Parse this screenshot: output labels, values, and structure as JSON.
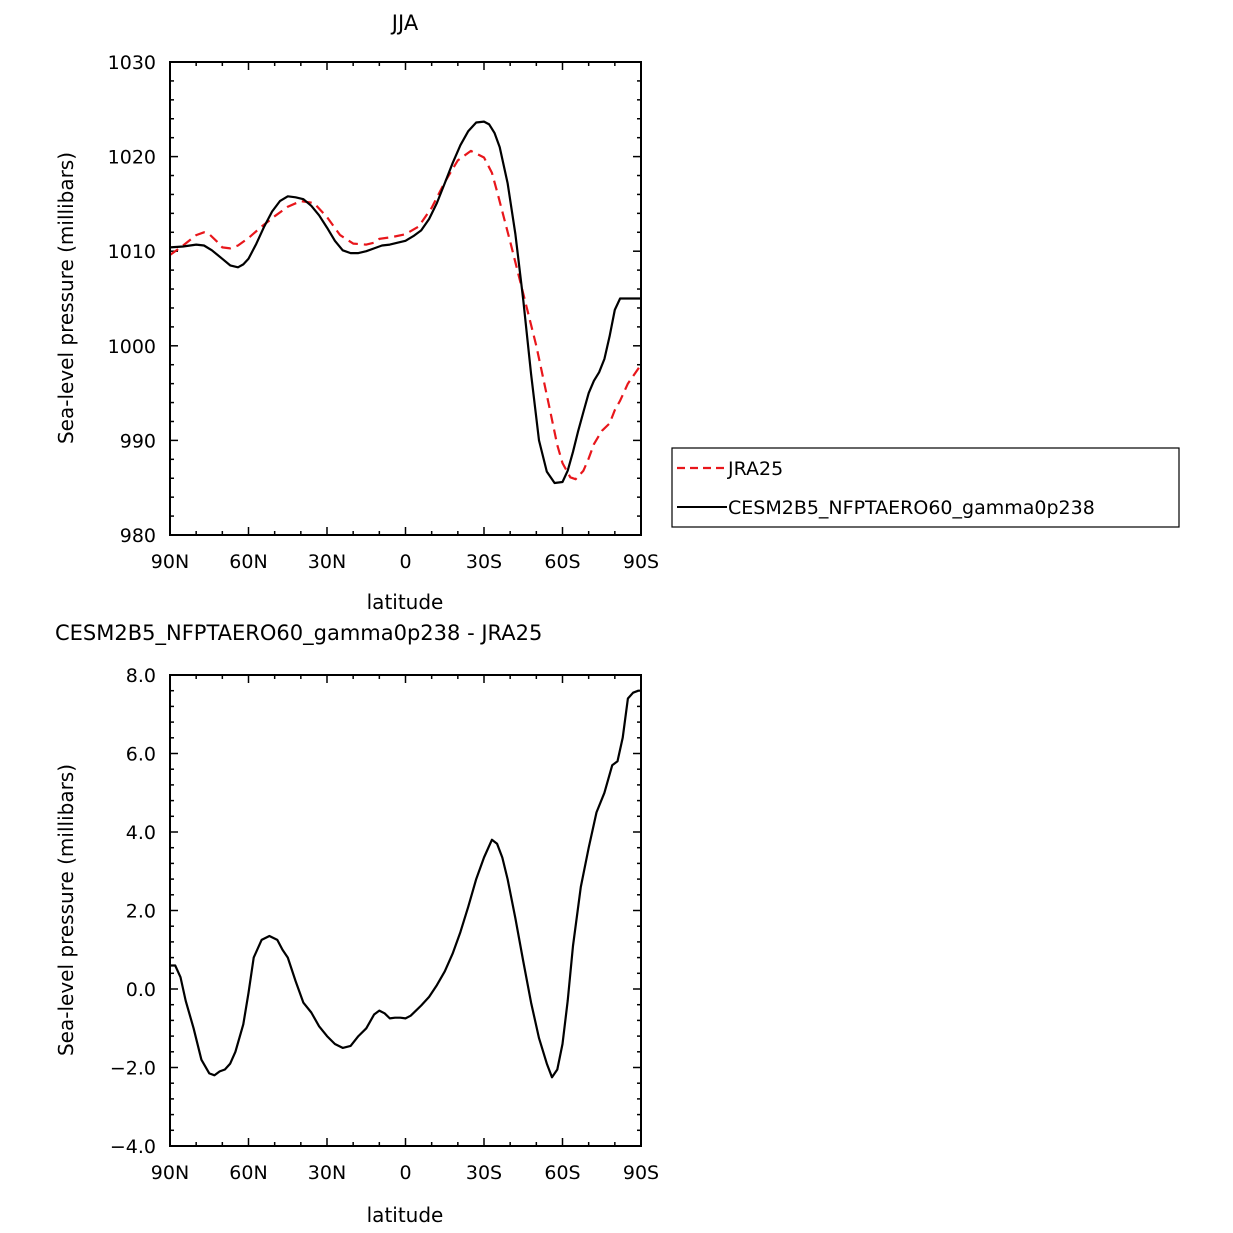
{
  "chart_data": [
    {
      "type": "line",
      "title": "JJA",
      "xlabel": "latitude",
      "ylabel": "Sea-level pressure (millibars)",
      "xlim": [
        -90,
        90
      ],
      "x_ticks": [
        -90,
        -60,
        -30,
        0,
        30,
        60,
        90
      ],
      "x_tick_labels": [
        "90N",
        "60N",
        "30N",
        "0",
        "30S",
        "60S",
        "90S"
      ],
      "ylim": [
        980,
        1030
      ],
      "y_ticks": [
        980,
        990,
        1000,
        1010,
        1020,
        1030
      ],
      "y_tick_labels": [
        "980",
        "990",
        "1000",
        "1010",
        "1020",
        "1030"
      ],
      "grid": false,
      "legend_position": "right",
      "series": [
        {
          "name": "JRA25",
          "color": "#e8161b",
          "dash": "dashed",
          "x": [
            -90,
            -85,
            -80,
            -77,
            -75,
            -72,
            -70,
            -67,
            -64,
            -60,
            -55,
            -50,
            -45,
            -40,
            -35,
            -30,
            -25,
            -20,
            -15,
            -12,
            -10,
            -5,
            0,
            5,
            10,
            15,
            20,
            25,
            30,
            33,
            35,
            40,
            45,
            50,
            55,
            58,
            60,
            63,
            65,
            68,
            70,
            72,
            75,
            78,
            80,
            82,
            85,
            88,
            90
          ],
          "y": [
            1009.6,
            1010.6,
            1011.7,
            1012.0,
            1011.8,
            1011.0,
            1010.4,
            1010.3,
            1010.6,
            1011.4,
            1012.6,
            1013.7,
            1014.7,
            1015.3,
            1015.1,
            1013.6,
            1011.7,
            1010.8,
            1010.7,
            1010.9,
            1011.3,
            1011.5,
            1011.8,
            1012.6,
            1014.6,
            1017.3,
            1019.6,
            1020.6,
            1019.9,
            1018.3,
            1016.3,
            1011.0,
            1005.5,
            1000.0,
            993.5,
            989.5,
            987.6,
            986.1,
            985.9,
            986.8,
            988.1,
            989.6,
            991.0,
            991.8,
            993.2,
            994.2,
            996.0,
            997.2,
            998.0
          ]
        },
        {
          "name": "CESM2B5_NFPTAERO60_gamma0p238",
          "color": "#000000",
          "dash": "solid",
          "x": [
            -90,
            -85,
            -80,
            -77,
            -74,
            -70,
            -67,
            -64,
            -62,
            -60,
            -57,
            -54,
            -51,
            -48,
            -45,
            -42,
            -39,
            -36,
            -33,
            -30,
            -27,
            -24,
            -21,
            -18,
            -15,
            -12,
            -9,
            -6,
            -3,
            0,
            3,
            6,
            9,
            12,
            15,
            18,
            21,
            24,
            27,
            30,
            32,
            34,
            36,
            39,
            42,
            45,
            48,
            51,
            54,
            57,
            60,
            62,
            64,
            66,
            68,
            70,
            72,
            74,
            76,
            78,
            80,
            82,
            84,
            86,
            88,
            90
          ],
          "y": [
            1010.4,
            1010.5,
            1010.7,
            1010.6,
            1010.1,
            1009.2,
            1008.5,
            1008.3,
            1008.6,
            1009.2,
            1010.8,
            1012.6,
            1014.2,
            1015.3,
            1015.8,
            1015.7,
            1015.5,
            1014.8,
            1013.8,
            1012.5,
            1011.1,
            1010.1,
            1009.8,
            1009.8,
            1010.0,
            1010.3,
            1010.6,
            1010.7,
            1010.9,
            1011.1,
            1011.6,
            1012.2,
            1013.4,
            1015.1,
            1017.2,
            1019.3,
            1021.2,
            1022.7,
            1023.6,
            1023.7,
            1023.4,
            1022.5,
            1021.0,
            1017.2,
            1011.8,
            1004.8,
            997.0,
            990.0,
            986.7,
            985.5,
            985.6,
            986.8,
            988.8,
            991.0,
            993.0,
            995.0,
            996.3,
            997.2,
            998.6,
            1001.0,
            1003.8,
            1005.0,
            1005.0,
            1005.0,
            1005.0,
            1005.0
          ]
        }
      ]
    },
    {
      "type": "line",
      "title": "CESM2B5_NFPTAERO60_gamma0p238 - JRA25",
      "xlabel": "latitude",
      "ylabel": "Sea-level pressure (millibars)",
      "xlim": [
        -90,
        90
      ],
      "x_ticks": [
        -90,
        -60,
        -30,
        0,
        30,
        60,
        90
      ],
      "x_tick_labels": [
        "90N",
        "60N",
        "30N",
        "0",
        "30S",
        "60S",
        "90S"
      ],
      "ylim": [
        -4.0,
        8.0
      ],
      "y_ticks": [
        -4.0,
        -2.0,
        0.0,
        2.0,
        4.0,
        6.0,
        8.0
      ],
      "y_tick_labels": [
        "−4.0",
        "−2.0",
        "0.0",
        "2.0",
        "4.0",
        "6.0",
        "8.0"
      ],
      "grid": false,
      "series": [
        {
          "color": "#000000",
          "dash": "solid",
          "x": [
            -90,
            -88,
            -86,
            -84,
            -81,
            -78,
            -75,
            -73,
            -71,
            -69,
            -67,
            -65,
            -62,
            -60,
            -58,
            -55,
            -52,
            -49,
            -47,
            -45,
            -42,
            -39,
            -36,
            -33,
            -30,
            -27,
            -24,
            -21,
            -18,
            -15,
            -12,
            -10,
            -8,
            -6,
            -4,
            -2,
            0,
            2,
            4,
            6,
            9,
            12,
            15,
            18,
            21,
            24,
            27,
            30,
            33,
            35,
            37,
            39,
            42,
            45,
            48,
            51,
            54,
            56,
            58,
            60,
            62,
            64,
            67,
            70,
            73,
            76,
            79,
            81,
            83,
            85,
            87,
            89,
            90
          ],
          "y": [
            0.6,
            0.6,
            0.3,
            -0.3,
            -1.0,
            -1.8,
            -2.15,
            -2.2,
            -2.1,
            -2.05,
            -1.9,
            -1.6,
            -0.9,
            -0.1,
            0.8,
            1.25,
            1.35,
            1.25,
            1.0,
            0.8,
            0.2,
            -0.35,
            -0.6,
            -0.95,
            -1.2,
            -1.4,
            -1.5,
            -1.45,
            -1.2,
            -1.0,
            -0.65,
            -0.55,
            -0.62,
            -0.75,
            -0.73,
            -0.73,
            -0.75,
            -0.68,
            -0.55,
            -0.42,
            -0.2,
            0.1,
            0.45,
            0.9,
            1.45,
            2.1,
            2.8,
            3.35,
            3.8,
            3.7,
            3.35,
            2.8,
            1.8,
            0.7,
            -0.35,
            -1.25,
            -1.9,
            -2.25,
            -2.05,
            -1.4,
            -0.3,
            1.1,
            2.6,
            3.6,
            4.5,
            5.0,
            5.7,
            5.8,
            6.4,
            7.4,
            7.55,
            7.6,
            7.6
          ]
        }
      ]
    }
  ]
}
